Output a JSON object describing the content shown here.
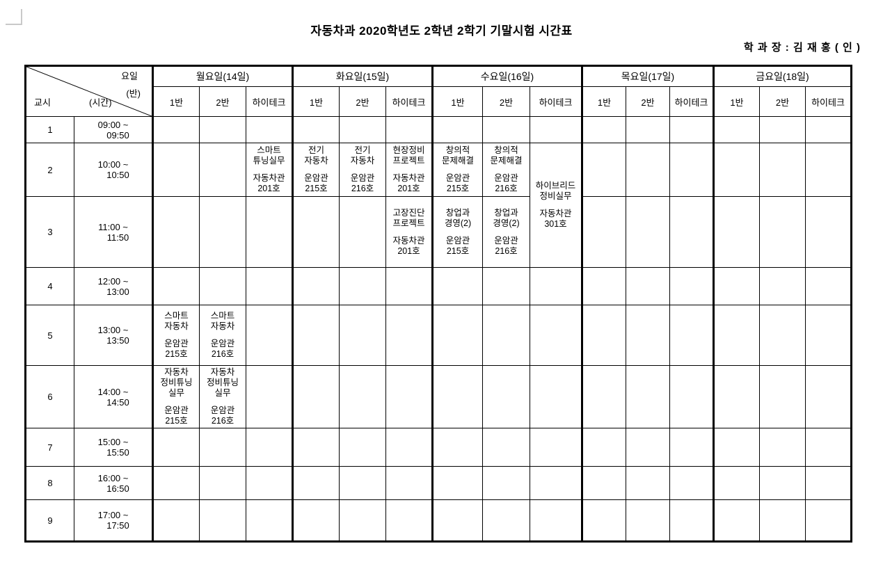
{
  "title": "자동차과 2020학년도 2학년 2학기 기말시험 시간표",
  "signature": "학 과 장 : 김 재 홍 ( 인 )",
  "corner_labels": {
    "day": "요일",
    "ban": "(반)",
    "period": "교시",
    "time": "(시간)"
  },
  "days": [
    {
      "key": "mon",
      "label": "월요일(14일)",
      "classes": [
        "1반",
        "2반",
        "하이테크"
      ]
    },
    {
      "key": "tue",
      "label": "화요일(15일)",
      "classes": [
        "1반",
        "2반",
        "하이테크"
      ]
    },
    {
      "key": "wed",
      "label": "수요일(16일)",
      "classes": [
        "1반",
        "2반",
        "하이테크"
      ]
    },
    {
      "key": "thu",
      "label": "목요일(17일)",
      "classes": [
        "1반",
        "2반",
        "하이테크"
      ]
    },
    {
      "key": "fri",
      "label": "금요일(18일)",
      "classes": [
        "1반",
        "2반",
        "하이테크"
      ]
    }
  ],
  "periods": [
    {
      "no": "1",
      "time": [
        "09:00 ~",
        "09:50"
      ]
    },
    {
      "no": "2",
      "time": [
        "10:00 ~",
        "10:50"
      ]
    },
    {
      "no": "3",
      "time": [
        "11:00 ~",
        "11:50"
      ]
    },
    {
      "no": "4",
      "time": [
        "12:00 ~",
        "13:00"
      ]
    },
    {
      "no": "5",
      "time": [
        "13:00 ~",
        "13:50"
      ]
    },
    {
      "no": "6",
      "time": [
        "14:00 ~",
        "14:50"
      ]
    },
    {
      "no": "7",
      "time": [
        "15:00 ~",
        "15:50"
      ]
    },
    {
      "no": "8",
      "time": [
        "16:00 ~",
        "16:50"
      ]
    },
    {
      "no": "9",
      "time": [
        "17:00 ~",
        "17:50"
      ]
    }
  ],
  "entries": [
    {
      "day": 0,
      "cls": 2,
      "period": 2,
      "rowspan": 1,
      "lines": [
        "스마트",
        "튜닝실무",
        "",
        "자동차관",
        "201호"
      ]
    },
    {
      "day": 1,
      "cls": 0,
      "period": 2,
      "rowspan": 1,
      "lines": [
        "전기",
        "자동차",
        "",
        "운암관",
        "215호"
      ]
    },
    {
      "day": 1,
      "cls": 1,
      "period": 2,
      "rowspan": 1,
      "lines": [
        "전기",
        "자동차",
        "",
        "운암관",
        "216호"
      ]
    },
    {
      "day": 1,
      "cls": 2,
      "period": 2,
      "rowspan": 1,
      "lines": [
        "현장정비",
        "프로젝트",
        "",
        "자동차관",
        "201호"
      ]
    },
    {
      "day": 2,
      "cls": 0,
      "period": 2,
      "rowspan": 1,
      "lines": [
        "창의적",
        "문제해결",
        "",
        "운암관",
        "215호"
      ]
    },
    {
      "day": 2,
      "cls": 1,
      "period": 2,
      "rowspan": 1,
      "lines": [
        "창의적",
        "문제해결",
        "",
        "운암관",
        "216호"
      ]
    },
    {
      "day": 2,
      "cls": 2,
      "period": 2,
      "rowspan": 2,
      "lines": [
        "하이브리드",
        "정비실무",
        "",
        "자동차관",
        "301호"
      ]
    },
    {
      "day": 1,
      "cls": 2,
      "period": 3,
      "rowspan": 1,
      "lines": [
        "고장진단",
        "프로젝트",
        "",
        "자동차관",
        "201호"
      ]
    },
    {
      "day": 2,
      "cls": 0,
      "period": 3,
      "rowspan": 1,
      "lines": [
        "창업과",
        "경영(2)",
        "",
        "운암관",
        "215호"
      ]
    },
    {
      "day": 2,
      "cls": 1,
      "period": 3,
      "rowspan": 1,
      "lines": [
        "창업과",
        "경영(2)",
        "",
        "운암관",
        "216호"
      ]
    },
    {
      "day": 0,
      "cls": 0,
      "period": 5,
      "rowspan": 1,
      "lines": [
        "스마트",
        "자동차",
        "",
        "운암관",
        "215호"
      ]
    },
    {
      "day": 0,
      "cls": 1,
      "period": 5,
      "rowspan": 1,
      "lines": [
        "스마트",
        "자동차",
        "",
        "운암관",
        "216호"
      ]
    },
    {
      "day": 0,
      "cls": 0,
      "period": 6,
      "rowspan": 1,
      "lines": [
        "자동차",
        "정비튜닝",
        "실무",
        "",
        "운암관",
        "215호"
      ]
    },
    {
      "day": 0,
      "cls": 1,
      "period": 6,
      "rowspan": 1,
      "lines": [
        "자동차",
        "정비튜닝",
        "실무",
        "",
        "운암관",
        "216호"
      ]
    }
  ],
  "colors": {
    "border": "#000000",
    "corner_mark": "#c9c9c9",
    "text": "#000000",
    "background": "#ffffff"
  }
}
